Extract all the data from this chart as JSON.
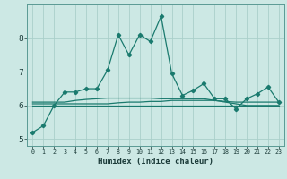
{
  "xlabel": "Humidex (Indice chaleur)",
  "bg_color": "#cce8e4",
  "grid_color": "#aacfca",
  "line_color": "#1a7a6e",
  "spine_color": "#5a9a94",
  "tick_color": "#1a3a38",
  "xlim": [
    -0.5,
    23.5
  ],
  "ylim": [
    4.8,
    9.0
  ],
  "yticks": [
    5,
    6,
    7,
    8
  ],
  "xticks": [
    0,
    1,
    2,
    3,
    4,
    5,
    6,
    7,
    8,
    9,
    10,
    11,
    12,
    13,
    14,
    15,
    16,
    17,
    18,
    19,
    20,
    21,
    22,
    23
  ],
  "main_series": [
    5.2,
    5.4,
    6.0,
    6.4,
    6.4,
    6.5,
    6.5,
    7.05,
    8.1,
    7.5,
    8.1,
    7.9,
    8.65,
    6.95,
    6.3,
    6.45,
    6.65,
    6.2,
    6.2,
    5.9,
    6.2,
    6.35,
    6.55,
    6.1
  ],
  "flat_line1": [
    6.05,
    6.05,
    6.05,
    6.05,
    6.05,
    6.05,
    6.05,
    6.05,
    6.08,
    6.1,
    6.1,
    6.12,
    6.12,
    6.15,
    6.15,
    6.15,
    6.15,
    6.15,
    6.12,
    6.1,
    6.1,
    6.1,
    6.1,
    6.1
  ],
  "flat_line2": [
    6.0,
    6.0,
    6.0,
    6.0,
    6.0,
    6.0,
    6.0,
    6.0,
    6.0,
    6.0,
    6.0,
    6.0,
    6.0,
    6.0,
    6.0,
    6.0,
    6.0,
    6.0,
    6.0,
    6.0,
    6.0,
    6.0,
    6.0,
    6.0
  ],
  "flat_line3": [
    6.1,
    6.1,
    6.1,
    6.1,
    6.15,
    6.18,
    6.2,
    6.22,
    6.22,
    6.22,
    6.22,
    6.22,
    6.2,
    6.2,
    6.2,
    6.2,
    6.2,
    6.15,
    6.1,
    6.05,
    6.0,
    6.0,
    6.0,
    6.0
  ]
}
